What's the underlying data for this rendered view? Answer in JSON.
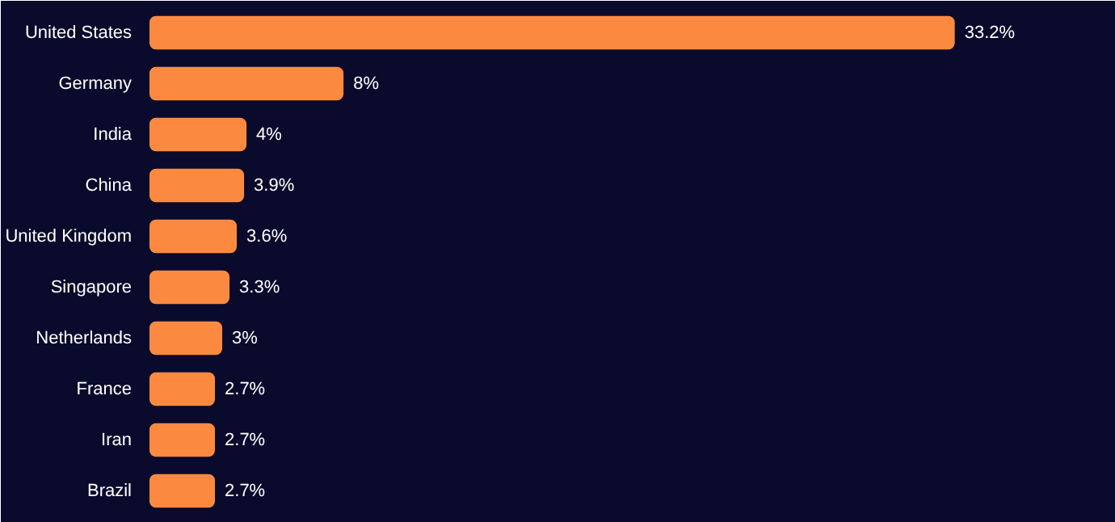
{
  "chart_data": {
    "type": "bar",
    "orientation": "horizontal",
    "categories": [
      "United States",
      "Germany",
      "India",
      "China",
      "United Kingdom",
      "Singapore",
      "Netherlands",
      "France",
      "Iran",
      "Brazil"
    ],
    "values": [
      33.2,
      8,
      4,
      3.9,
      3.6,
      3.3,
      3,
      2.7,
      2.7,
      2.7
    ],
    "value_labels": [
      "33.2%",
      "8%",
      "4%",
      "3.9%",
      "3.6%",
      "3.3%",
      "3%",
      "2.7%",
      "2.7%",
      "2.7%"
    ],
    "color": "#fb8a40",
    "grid": false
  }
}
